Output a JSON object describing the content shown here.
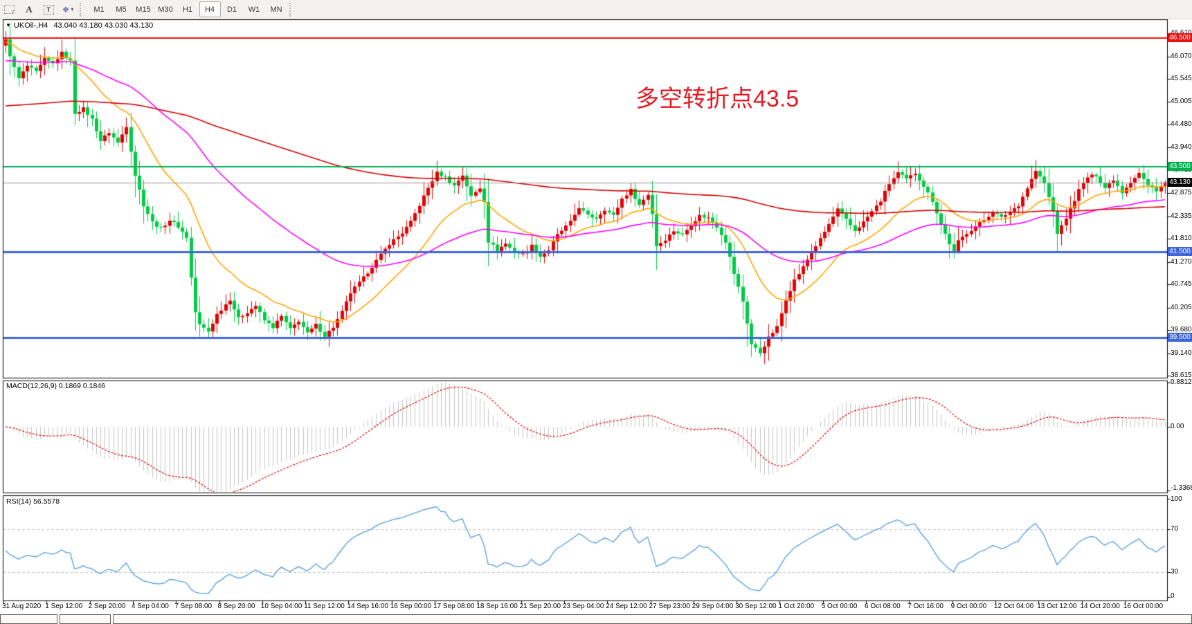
{
  "toolbar": {
    "tools": [
      {
        "name": "chart-shift-tool",
        "glyph": "F"
      },
      {
        "name": "text-tool",
        "glyph": "A"
      },
      {
        "name": "label-tool",
        "glyph": "T"
      },
      {
        "name": "arrow-objects-tool",
        "glyph": "❖"
      }
    ],
    "timeframes": [
      "M1",
      "M5",
      "M15",
      "M30",
      "H1",
      "H4",
      "D1",
      "W1",
      "MN"
    ],
    "active_timeframe": "H4"
  },
  "chart": {
    "symbol": "UKOil-,H4",
    "ohlc": "43.040 43.180 43.030 43.130",
    "annotation": {
      "text": "多空转折点43.5",
      "color": "#e61a23"
    },
    "colors": {
      "up": "#e00505",
      "down": "#00cc44",
      "ma_fast": "#ffa500",
      "ma_mid": "#ff00ff",
      "ma_slow": "#d40000",
      "macd_hist": "#c4c4c4",
      "macd_signal": "#e00000",
      "rsi_line": "#4f9be0",
      "level_dash": "#c0c0c0"
    },
    "hlines": [
      {
        "price": 46.5,
        "color": "#e81010",
        "w": 2
      },
      {
        "price": 43.5,
        "color": "#00b050",
        "w": 2
      },
      {
        "price": 43.13,
        "color": "#909090",
        "w": 1
      },
      {
        "price": 41.5,
        "color": "#3e64d9",
        "w": 3
      },
      {
        "price": 39.5,
        "color": "#3e64d9",
        "w": 3
      }
    ],
    "badges": [
      {
        "price": 46.5,
        "text": "46.500",
        "bg": "#e81010"
      },
      {
        "price": 43.5,
        "text": "43.500",
        "bg": "#00b050"
      },
      {
        "price": 43.13,
        "text": "43.130",
        "bg": "#000000"
      },
      {
        "price": 41.5,
        "text": "41.500",
        "bg": "#3e64d9"
      },
      {
        "price": 39.5,
        "text": "39.500",
        "bg": "#3e64d9"
      }
    ],
    "price_ticks": [
      "46.610",
      "46.070",
      "45.545",
      "45.005",
      "44.480",
      "43.940",
      "43.415",
      "42.875",
      "42.335",
      "41.810",
      "41.270",
      "40.745",
      "40.205",
      "39.680",
      "39.140",
      "38.615"
    ],
    "bars": 270,
    "waypoints": [
      [
        0,
        46.45
      ],
      [
        1,
        46.1
      ],
      [
        2,
        45.8
      ],
      [
        3,
        45.55
      ],
      [
        5,
        45.85
      ],
      [
        7,
        45.7
      ],
      [
        9,
        46.0
      ],
      [
        11,
        45.9
      ],
      [
        13,
        46.15
      ],
      [
        15,
        45.95
      ],
      [
        16,
        44.75
      ],
      [
        18,
        44.85
      ],
      [
        20,
        44.6
      ],
      [
        22,
        44.1
      ],
      [
        24,
        44.3
      ],
      [
        26,
        44.05
      ],
      [
        28,
        44.45
      ],
      [
        30,
        43.3
      ],
      [
        32,
        42.6
      ],
      [
        34,
        42.2
      ],
      [
        36,
        42.05
      ],
      [
        38,
        42.25
      ],
      [
        40,
        42.1
      ],
      [
        42,
        41.85
      ],
      [
        43,
        40.9
      ],
      [
        44,
        40.1
      ],
      [
        45,
        39.8
      ],
      [
        47,
        39.65
      ],
      [
        49,
        40.05
      ],
      [
        52,
        40.4
      ],
      [
        54,
        39.95
      ],
      [
        56,
        40.1
      ],
      [
        58,
        40.25
      ],
      [
        60,
        39.9
      ],
      [
        62,
        39.75
      ],
      [
        64,
        40.0
      ],
      [
        66,
        39.7
      ],
      [
        68,
        39.9
      ],
      [
        70,
        39.6
      ],
      [
        72,
        39.8
      ],
      [
        74,
        39.55
      ],
      [
        76,
        39.75
      ],
      [
        78,
        40.1
      ],
      [
        80,
        40.55
      ],
      [
        83,
        40.9
      ],
      [
        86,
        41.3
      ],
      [
        89,
        41.7
      ],
      [
        92,
        41.95
      ],
      [
        94,
        42.2
      ],
      [
        96,
        42.6
      ],
      [
        98,
        43.0
      ],
      [
        100,
        43.35
      ],
      [
        102,
        43.25
      ],
      [
        104,
        43.05
      ],
      [
        106,
        43.3
      ],
      [
        108,
        42.8
      ],
      [
        110,
        43.0
      ],
      [
        111,
        42.7
      ],
      [
        112,
        41.75
      ],
      [
        114,
        41.55
      ],
      [
        116,
        41.7
      ],
      [
        118,
        41.5
      ],
      [
        120,
        41.45
      ],
      [
        122,
        41.65
      ],
      [
        124,
        41.4
      ],
      [
        126,
        41.55
      ],
      [
        128,
        41.9
      ],
      [
        131,
        42.2
      ],
      [
        133,
        42.55
      ],
      [
        135,
        42.35
      ],
      [
        137,
        42.3
      ],
      [
        139,
        42.5
      ],
      [
        141,
        42.35
      ],
      [
        143,
        42.75
      ],
      [
        145,
        42.95
      ],
      [
        147,
        42.6
      ],
      [
        149,
        42.85
      ],
      [
        150,
        42.4
      ],
      [
        151,
        41.65
      ],
      [
        153,
        41.8
      ],
      [
        155,
        42.0
      ],
      [
        157,
        41.9
      ],
      [
        159,
        42.15
      ],
      [
        161,
        42.35
      ],
      [
        163,
        42.3
      ],
      [
        165,
        42.1
      ],
      [
        167,
        41.75
      ],
      [
        169,
        41.0
      ],
      [
        171,
        40.35
      ],
      [
        173,
        39.35
      ],
      [
        175,
        39.15
      ],
      [
        177,
        39.5
      ],
      [
        179,
        39.75
      ],
      [
        181,
        40.4
      ],
      [
        183,
        40.85
      ],
      [
        185,
        41.15
      ],
      [
        187,
        41.5
      ],
      [
        189,
        41.8
      ],
      [
        191,
        42.15
      ],
      [
        193,
        42.5
      ],
      [
        195,
        42.25
      ],
      [
        197,
        42.0
      ],
      [
        199,
        42.2
      ],
      [
        201,
        42.45
      ],
      [
        203,
        42.7
      ],
      [
        205,
        43.1
      ],
      [
        207,
        43.35
      ],
      [
        209,
        43.2
      ],
      [
        211,
        43.35
      ],
      [
        213,
        43.05
      ],
      [
        215,
        42.7
      ],
      [
        217,
        42.15
      ],
      [
        219,
        41.7
      ],
      [
        220,
        41.5
      ],
      [
        221,
        41.75
      ],
      [
        223,
        41.95
      ],
      [
        225,
        42.1
      ],
      [
        227,
        42.25
      ],
      [
        229,
        42.45
      ],
      [
        231,
        42.3
      ],
      [
        233,
        42.45
      ],
      [
        235,
        42.6
      ],
      [
        237,
        43.0
      ],
      [
        239,
        43.4
      ],
      [
        241,
        43.1
      ],
      [
        243,
        42.45
      ],
      [
        244,
        41.95
      ],
      [
        245,
        42.1
      ],
      [
        247,
        42.5
      ],
      [
        249,
        42.95
      ],
      [
        251,
        43.25
      ],
      [
        253,
        43.3
      ],
      [
        255,
        43.0
      ],
      [
        257,
        43.2
      ],
      [
        259,
        42.9
      ],
      [
        261,
        43.15
      ],
      [
        263,
        43.35
      ],
      [
        265,
        43.05
      ],
      [
        267,
        42.95
      ],
      [
        268,
        43.04
      ],
      [
        269,
        43.13
      ]
    ]
  },
  "macd": {
    "label": "MACD(12,26,9) 0.1869 0.1846",
    "ticks": [
      {
        "v": 0.8812,
        "t": "0.8812"
      },
      {
        "v": 0.0,
        "t": "0.00"
      },
      {
        "v": -1.3368,
        "t": "-1.3368"
      }
    ]
  },
  "rsi": {
    "label": "RSI(14) 56.5578",
    "ticks": [
      {
        "v": 100,
        "t": "100"
      },
      {
        "v": 70,
        "t": "70"
      },
      {
        "v": 30,
        "t": "30"
      },
      {
        "v": 0,
        "t": "0"
      }
    ],
    "levels": [
      70,
      30
    ]
  },
  "time_axis": [
    "31 Aug 2020",
    "1 Sep 12:00",
    "2 Sep 20:00",
    "4 Sep 04:00",
    "7 Sep 08:00",
    "8 Sep 20:00",
    "10 Sep 04:00",
    "11 Sep 12:00",
    "14 Sep 16:00",
    "16 Sep 00:00",
    "17 Sep 08:00",
    "18 Sep 16:00",
    "21 Sep 20:00",
    "23 Sep 04:00",
    "24 Sep 12:00",
    "27 Sep 23:00",
    "29 Sep 04:00",
    "30 Sep 12:00",
    "1 Oct 20:00",
    "5 Oct 00:00",
    "6 Oct 08:00",
    "7 Oct 16:00",
    "9 Oct 00:00",
    "12 Oct 04:00",
    "13 Oct 12:00",
    "14 Oct 20:00",
    "16 Oct 00:00"
  ],
  "bottom_tabs": {
    "lefts": [
      0,
      86,
      163
    ],
    "widths": [
      83,
      74,
      1559
    ]
  }
}
